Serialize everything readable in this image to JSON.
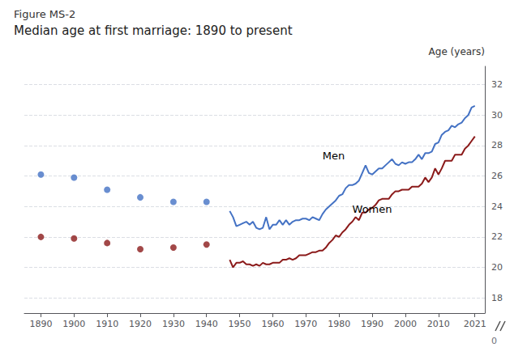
{
  "chart_data": {
    "type": "line",
    "title": "Figure MS-2",
    "subtitle": "Median age at first marriage: 1890 to present",
    "y_label": "Age (years)",
    "grid": true,
    "xlim": [
      1885,
      2024
    ],
    "xticks": [
      1890,
      1900,
      1910,
      1920,
      1930,
      1940,
      1950,
      1960,
      1970,
      1980,
      1990,
      2000,
      2010,
      2021
    ],
    "ylim": [
      17.0,
      33.2
    ],
    "yticks": [
      18,
      20,
      22,
      24,
      26,
      28,
      30,
      32
    ],
    "series": [
      {
        "name": "Men",
        "type": "scatter",
        "marker": "circle",
        "color": "#4472C4",
        "x": [
          1890,
          1900,
          1910,
          1920,
          1930,
          1940
        ],
        "values": [
          26.1,
          25.9,
          25.1,
          24.6,
          24.3,
          24.3
        ]
      },
      {
        "name": "Women",
        "type": "scatter",
        "marker": "circle",
        "color": "#8B1A1A",
        "x": [
          1890,
          1900,
          1910,
          1920,
          1930,
          1940
        ],
        "values": [
          22.0,
          21.9,
          21.6,
          21.2,
          21.3,
          21.5
        ]
      },
      {
        "name": "Men",
        "type": "line",
        "line_style": "solid",
        "color": "#4472C4",
        "x": [
          1947,
          1948,
          1949,
          1950,
          1951,
          1952,
          1953,
          1954,
          1955,
          1956,
          1957,
          1958,
          1959,
          1960,
          1961,
          1962,
          1963,
          1964,
          1965,
          1966,
          1967,
          1968,
          1969,
          1970,
          1971,
          1972,
          1973,
          1974,
          1975,
          1976,
          1977,
          1978,
          1979,
          1980,
          1981,
          1982,
          1983,
          1984,
          1985,
          1986,
          1987,
          1988,
          1989,
          1990,
          1991,
          1992,
          1993,
          1994,
          1995,
          1996,
          1997,
          1998,
          1999,
          2000,
          2001,
          2002,
          2003,
          2004,
          2005,
          2006,
          2007,
          2008,
          2009,
          2010,
          2011,
          2012,
          2013,
          2014,
          2015,
          2016,
          2017,
          2018,
          2019,
          2020,
          2021
        ],
        "values": [
          23.7,
          23.3,
          22.7,
          22.8,
          22.9,
          23.0,
          22.8,
          23.0,
          22.6,
          22.5,
          22.6,
          23.3,
          22.5,
          22.8,
          22.8,
          23.1,
          22.8,
          23.1,
          22.8,
          23.0,
          23.1,
          23.1,
          23.2,
          23.2,
          23.1,
          23.3,
          23.2,
          23.1,
          23.5,
          23.8,
          24.0,
          24.2,
          24.4,
          24.7,
          24.8,
          25.2,
          25.4,
          25.4,
          25.5,
          25.7,
          26.2,
          26.7,
          26.2,
          26.1,
          26.3,
          26.5,
          26.5,
          26.7,
          26.9,
          27.1,
          26.8,
          26.7,
          26.9,
          26.8,
          26.9,
          26.9,
          27.1,
          27.4,
          27.1,
          27.5,
          27.5,
          27.6,
          28.1,
          28.2,
          28.7,
          28.9,
          29.0,
          29.3,
          29.2,
          29.4,
          29.5,
          29.8,
          30.0,
          30.5,
          30.6
        ]
      },
      {
        "name": "Women",
        "type": "line",
        "line_style": "solid",
        "color": "#8B1A1A",
        "x": [
          1947,
          1948,
          1949,
          1950,
          1951,
          1952,
          1953,
          1954,
          1955,
          1956,
          1957,
          1958,
          1959,
          1960,
          1961,
          1962,
          1963,
          1964,
          1965,
          1966,
          1967,
          1968,
          1969,
          1970,
          1971,
          1972,
          1973,
          1974,
          1975,
          1976,
          1977,
          1978,
          1979,
          1980,
          1981,
          1982,
          1983,
          1984,
          1985,
          1986,
          1987,
          1988,
          1989,
          1990,
          1991,
          1992,
          1993,
          1994,
          1995,
          1996,
          1997,
          1998,
          1999,
          2000,
          2001,
          2002,
          2003,
          2004,
          2005,
          2006,
          2007,
          2008,
          2009,
          2010,
          2011,
          2012,
          2013,
          2014,
          2015,
          2016,
          2017,
          2018,
          2019,
          2020,
          2021
        ],
        "values": [
          20.5,
          20.0,
          20.3,
          20.3,
          20.4,
          20.2,
          20.2,
          20.1,
          20.2,
          20.1,
          20.3,
          20.2,
          20.2,
          20.3,
          20.3,
          20.3,
          20.5,
          20.5,
          20.6,
          20.5,
          20.6,
          20.8,
          20.8,
          20.8,
          20.9,
          21.0,
          21.0,
          21.1,
          21.1,
          21.3,
          21.6,
          21.8,
          22.1,
          22.0,
          22.3,
          22.5,
          22.8,
          23.0,
          23.3,
          23.1,
          23.6,
          23.6,
          23.8,
          23.9,
          24.1,
          24.4,
          24.5,
          24.5,
          24.5,
          24.8,
          25.0,
          25.0,
          25.1,
          25.1,
          25.1,
          25.3,
          25.3,
          25.3,
          25.5,
          25.9,
          25.6,
          25.9,
          26.5,
          26.1,
          26.5,
          27.0,
          27.0,
          27.0,
          27.4,
          27.4,
          27.4,
          27.8,
          28.0,
          28.3,
          28.6
        ]
      }
    ],
    "annotations": [
      {
        "text": "Men",
        "x": 1975,
        "y": 27.0
      },
      {
        "text": "Women",
        "x": 1984,
        "y": 23.5
      },
      {
        "text": "0",
        "axis_break": "y"
      }
    ]
  }
}
